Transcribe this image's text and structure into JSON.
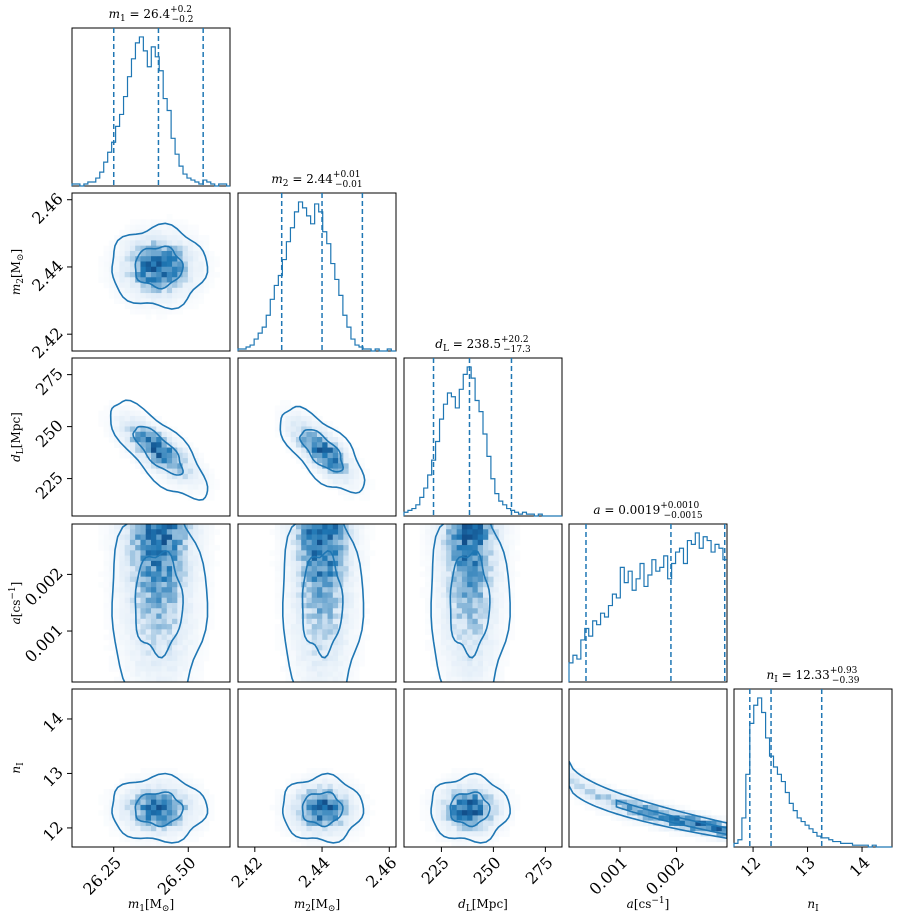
{
  "chart_data": {
    "type": "corner",
    "colors": {
      "main": "#1f77b4",
      "dark": "#08306b",
      "light": "#deebf7"
    },
    "params": [
      {
        "key": "m1",
        "axis_label": {
          "main": "m",
          "sub": "1",
          "tail": "[M",
          "sub2": "⊙",
          "end": "]"
        },
        "title": {
          "prefix": "m",
          "prefix_sub": "1",
          "median": "26.4",
          "plus": "+0.2",
          "minus": "−0.2"
        },
        "range": [
          26.11,
          26.64
        ],
        "ticks": [
          26.25,
          26.5
        ],
        "tick_labels": [
          "26.25",
          "26.50"
        ],
        "quantiles": [
          26.25,
          26.4,
          26.55
        ],
        "hist": {
          "edges_start": 26.11,
          "bin_width": 0.0133,
          "values": [
            1,
            1,
            0,
            1,
            2,
            2,
            4,
            7,
            12,
            17,
            22,
            30,
            36,
            45,
            55,
            64,
            72,
            75,
            68,
            60,
            70,
            65,
            58,
            44,
            38,
            24,
            16,
            10,
            6,
            4,
            3,
            2,
            1,
            3,
            2,
            1,
            0,
            1,
            1,
            0
          ]
        }
      },
      {
        "key": "m2",
        "axis_label": {
          "main": "m",
          "sub": "2",
          "tail": "[M",
          "sub2": "⊙",
          "end": "]"
        },
        "title": {
          "prefix": "m",
          "prefix_sub": "2",
          "median": "2.44",
          "plus": "+0.01",
          "minus": "−0.01"
        },
        "range": [
          2.415,
          2.462
        ],
        "ticks": [
          2.42,
          2.44,
          2.46
        ],
        "tick_labels": [
          "2.42",
          "2.44",
          "2.46"
        ],
        "quantiles": [
          2.428,
          2.44,
          2.452
        ],
        "hist": {
          "edges_start": 2.415,
          "bin_width": 0.0012,
          "values": [
            1,
            1,
            2,
            3,
            6,
            9,
            12,
            18,
            26,
            33,
            38,
            46,
            55,
            62,
            70,
            75,
            72,
            68,
            64,
            74,
            70,
            60,
            54,
            44,
            36,
            28,
            18,
            12,
            6,
            3,
            2,
            1,
            1,
            0,
            1,
            0,
            0,
            1,
            0,
            0
          ]
        }
      },
      {
        "key": "dL",
        "axis_label": {
          "main": "d",
          "sub": "L",
          "tail": "[Mpc]",
          "sub2": "",
          "end": ""
        },
        "title": {
          "prefix": "d",
          "prefix_sub": "L",
          "median": "238.5",
          "plus": "+20.2",
          "minus": "−17.3"
        },
        "range": [
          207,
          283
        ],
        "ticks": [
          225,
          250,
          275
        ],
        "tick_labels": [
          "225",
          "250",
          "275"
        ],
        "quantiles": [
          221.2,
          238.5,
          258.7
        ],
        "hist": {
          "edges_start": 207,
          "bin_width": 1.9,
          "values": [
            2,
            3,
            4,
            6,
            10,
            15,
            22,
            30,
            40,
            52,
            60,
            66,
            64,
            58,
            68,
            76,
            80,
            74,
            62,
            56,
            44,
            32,
            20,
            12,
            8,
            6,
            4,
            3,
            2,
            1,
            2,
            1,
            1,
            0,
            1,
            0,
            0,
            0,
            0,
            0
          ]
        }
      },
      {
        "key": "a",
        "axis_label": {
          "main": "a",
          "sub": "",
          "tail": "[cs",
          "sub2": "",
          "sup": "−1",
          "end": "]"
        },
        "title": {
          "prefix": "a",
          "prefix_sub": "",
          "median": "0.0019",
          "plus": "+0.0010",
          "minus": "−0.0015"
        },
        "range": [
          0.0001,
          0.00289
        ],
        "ticks": [
          0.001,
          0.002
        ],
        "tick_labels": [
          "0.001",
          "0.002"
        ],
        "quantiles": [
          0.0004,
          0.0019,
          0.00285
        ],
        "hist": {
          "edges_start": 0.0001,
          "bin_width": 6.97e-05,
          "values": [
            10,
            14,
            12,
            22,
            28,
            24,
            32,
            30,
            36,
            34,
            40,
            46,
            44,
            60,
            52,
            58,
            48,
            54,
            62,
            50,
            56,
            64,
            58,
            60,
            66,
            54,
            62,
            68,
            70,
            62,
            74,
            72,
            78,
            70,
            76,
            74,
            68,
            72,
            70,
            64
          ]
        }
      },
      {
        "key": "nI",
        "axis_label": {
          "main": "n",
          "sub": "I",
          "tail": "",
          "sub2": "",
          "end": ""
        },
        "title": {
          "prefix": "n",
          "prefix_sub": "I",
          "median": "12.33",
          "plus": "+0.93",
          "minus": "−0.39"
        },
        "range": [
          11.65,
          14.55
        ],
        "ticks": [
          12,
          13,
          14
        ],
        "tick_labels": [
          "12",
          "13",
          "14"
        ],
        "quantiles": [
          11.94,
          12.33,
          13.26
        ],
        "hist": {
          "edges_start": 11.65,
          "bin_width": 0.0725,
          "values": [
            2,
            4,
            16,
            40,
            68,
            78,
            82,
            74,
            60,
            50,
            44,
            40,
            36,
            30,
            24,
            20,
            16,
            14,
            12,
            10,
            8,
            6,
            5,
            5,
            4,
            3,
            3,
            2,
            2,
            2,
            1,
            1,
            1,
            1,
            0,
            1,
            0,
            0,
            0,
            0
          ]
        }
      }
    ],
    "pairs": [
      {
        "row": 1,
        "col": 0,
        "mean": [
          26.4,
          2.44
        ],
        "sd": [
          0.08,
          0.006
        ],
        "rho": 0.0
      },
      {
        "row": 2,
        "col": 0,
        "mean": [
          26.4,
          238.5
        ],
        "sd": [
          0.08,
          9.5
        ],
        "rho": -0.72
      },
      {
        "row": 2,
        "col": 1,
        "mean": [
          2.44,
          238.5
        ],
        "sd": [
          0.006,
          9.5
        ],
        "rho": -0.72
      },
      {
        "row": 3,
        "col": 0,
        "mean": [
          26.4,
          0.002
        ],
        "sd": [
          0.08,
          0.00055
        ],
        "rho": 0.0
      },
      {
        "row": 3,
        "col": 1,
        "mean": [
          2.44,
          0.002
        ],
        "sd": [
          0.006,
          0.00055
        ],
        "rho": 0.0
      },
      {
        "row": 3,
        "col": 2,
        "mean": [
          238.5,
          0.002
        ],
        "sd": [
          9.5,
          0.00055
        ],
        "rho": 0.0
      },
      {
        "row": 4,
        "col": 0,
        "mean": [
          26.4,
          12.35
        ],
        "sd": [
          0.08,
          0.3
        ],
        "rho": 0.0
      },
      {
        "row": 4,
        "col": 1,
        "mean": [
          2.44,
          12.35
        ],
        "sd": [
          0.006,
          0.3
        ],
        "rho": 0.0
      },
      {
        "row": 4,
        "col": 2,
        "mean": [
          238.5,
          12.35
        ],
        "sd": [
          9.5,
          0.3
        ],
        "rho": 0.0
      },
      {
        "row": 4,
        "col": 3,
        "mean": [
          0.0019,
          12.35
        ],
        "sd": [
          0.00055,
          0.3
        ],
        "rho": -0.9
      }
    ]
  }
}
